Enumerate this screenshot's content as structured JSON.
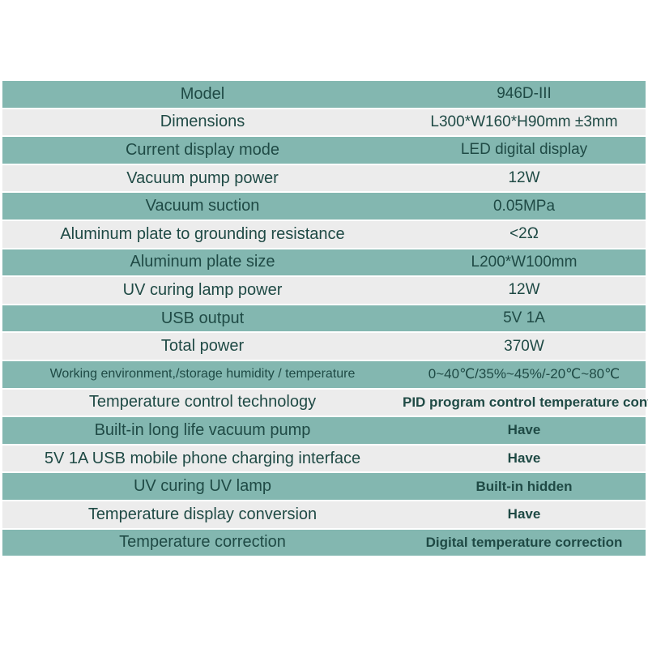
{
  "table": {
    "rows": [
      [
        "Model",
        "946D-III"
      ],
      [
        "Dimensions",
        "L300*W160*H90mm ±3mm"
      ],
      [
        "Current display mode",
        "LED digital display"
      ],
      [
        "Vacuum pump power",
        "12W"
      ],
      [
        "Vacuum suction",
        "0.05MPa"
      ],
      [
        "Aluminum plate to grounding resistance",
        "<2Ω"
      ],
      [
        "Aluminum plate size",
        "L200*W100mm"
      ],
      [
        "UV curing lamp power",
        "12W"
      ],
      [
        "USB output",
        "5V 1A"
      ],
      [
        "Total power",
        "370W"
      ],
      [
        "Working environment,/storage humidity / temperature",
        "0~40℃/35%~45%/-20℃~80℃"
      ],
      [
        "Temperature control technology",
        "PID program control temperature control"
      ],
      [
        "Built-in long life vacuum pump",
        "Have"
      ],
      [
        "5V 1A USB mobile phone charging interface",
        "Have"
      ],
      [
        "UV curing UV lamp",
        "Built-in hidden"
      ],
      [
        "Temperature display conversion",
        "Have"
      ],
      [
        "Temperature correction",
        "Digital temperature correction"
      ]
    ]
  }
}
